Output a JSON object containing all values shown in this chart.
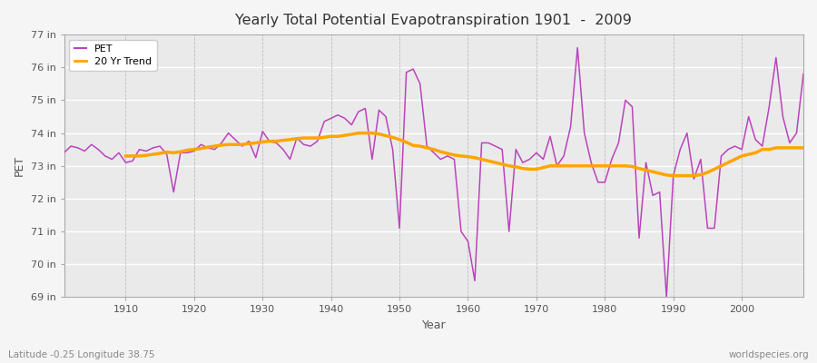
{
  "title": "Yearly Total Potential Evapotranspiration 1901  -  2009",
  "ylabel": "PET",
  "xlabel": "Year",
  "bottom_left_label": "Latitude -0.25 Longitude 38.75",
  "bottom_right_label": "worldspecies.org",
  "pet_color": "#bb44bb",
  "trend_color": "#ffa500",
  "fig_bg_color": "#f5f5f5",
  "plot_bg_color": "#eaeaea",
  "ylim": [
    69,
    77
  ],
  "yticks": [
    69,
    70,
    71,
    72,
    73,
    74,
    75,
    76,
    77
  ],
  "ytick_labels": [
    "69 in",
    "70 in",
    "71 in",
    "72 in",
    "73 in",
    "74 in",
    "75 in",
    "76 in",
    "77 in"
  ],
  "xticks": [
    1910,
    1920,
    1930,
    1940,
    1950,
    1960,
    1970,
    1980,
    1990,
    2000
  ],
  "xlim_left": 1901,
  "xlim_right": 2009,
  "years": [
    1901,
    1902,
    1903,
    1904,
    1905,
    1906,
    1907,
    1908,
    1909,
    1910,
    1911,
    1912,
    1913,
    1914,
    1915,
    1916,
    1917,
    1918,
    1919,
    1920,
    1921,
    1922,
    1923,
    1924,
    1925,
    1926,
    1927,
    1928,
    1929,
    1930,
    1931,
    1932,
    1933,
    1934,
    1935,
    1936,
    1937,
    1938,
    1939,
    1940,
    1941,
    1942,
    1943,
    1944,
    1945,
    1946,
    1947,
    1948,
    1949,
    1950,
    1951,
    1952,
    1953,
    1954,
    1955,
    1956,
    1957,
    1958,
    1959,
    1960,
    1961,
    1962,
    1963,
    1964,
    1965,
    1966,
    1967,
    1968,
    1969,
    1970,
    1971,
    1972,
    1973,
    1974,
    1975,
    1976,
    1977,
    1978,
    1979,
    1980,
    1981,
    1982,
    1983,
    1984,
    1985,
    1986,
    1987,
    1988,
    1989,
    1990,
    1991,
    1992,
    1993,
    1994,
    1995,
    1996,
    1997,
    1998,
    1999,
    2000,
    2001,
    2002,
    2003,
    2004,
    2005,
    2006,
    2007,
    2008,
    2009
  ],
  "pet_values": [
    73.4,
    73.6,
    73.55,
    73.45,
    73.65,
    73.5,
    73.3,
    73.2,
    73.4,
    73.1,
    73.15,
    73.5,
    73.45,
    73.55,
    73.6,
    73.35,
    72.2,
    73.4,
    73.4,
    73.45,
    73.65,
    73.55,
    73.5,
    73.7,
    74.0,
    73.8,
    73.6,
    73.75,
    73.25,
    74.05,
    73.75,
    73.7,
    73.5,
    73.2,
    73.85,
    73.65,
    73.6,
    73.75,
    74.35,
    74.45,
    74.55,
    74.45,
    74.25,
    74.65,
    74.75,
    73.2,
    74.7,
    74.5,
    73.5,
    71.1,
    75.85,
    75.95,
    75.5,
    73.6,
    73.4,
    73.2,
    73.3,
    73.2,
    71.0,
    70.7,
    69.5,
    73.7,
    73.7,
    73.6,
    73.5,
    71.0,
    73.5,
    73.1,
    73.2,
    73.4,
    73.2,
    73.9,
    73.0,
    73.3,
    74.2,
    76.6,
    74.0,
    73.1,
    72.5,
    72.5,
    73.2,
    73.7,
    75.0,
    74.8,
    70.8,
    73.1,
    72.1,
    72.2,
    69.0,
    72.7,
    73.5,
    74.0,
    72.6,
    73.2,
    71.1,
    71.1,
    73.3,
    73.5,
    73.6,
    73.5,
    74.5,
    73.8,
    73.6,
    74.8,
    76.3,
    74.5,
    73.7,
    74.0,
    75.8
  ],
  "trend_values": [
    null,
    null,
    null,
    null,
    null,
    null,
    null,
    null,
    null,
    73.3,
    73.3,
    73.3,
    73.32,
    73.35,
    73.38,
    73.42,
    73.4,
    73.43,
    73.48,
    73.5,
    73.53,
    73.57,
    73.6,
    73.63,
    73.65,
    73.65,
    73.65,
    73.68,
    73.7,
    73.73,
    73.75,
    73.75,
    73.78,
    73.8,
    73.83,
    73.85,
    73.85,
    73.85,
    73.87,
    73.9,
    73.9,
    73.93,
    73.96,
    74.0,
    74.0,
    74.0,
    73.97,
    73.92,
    73.87,
    73.8,
    73.72,
    73.62,
    73.6,
    73.55,
    73.5,
    73.43,
    73.38,
    73.33,
    73.3,
    73.28,
    73.25,
    73.2,
    73.15,
    73.1,
    73.05,
    73.0,
    72.97,
    72.92,
    72.9,
    72.9,
    72.95,
    73.0,
    73.0,
    73.0,
    73.0,
    73.0,
    73.0,
    73.0,
    73.0,
    73.0,
    73.0,
    73.0,
    73.0,
    72.98,
    72.92,
    72.87,
    72.82,
    72.77,
    72.72,
    72.7,
    72.7,
    72.7,
    72.7,
    72.73,
    72.8,
    72.9,
    73.0,
    73.1,
    73.2,
    73.3,
    73.35,
    73.4,
    73.5,
    73.5,
    73.55,
    73.55,
    73.55,
    73.55,
    73.55
  ]
}
